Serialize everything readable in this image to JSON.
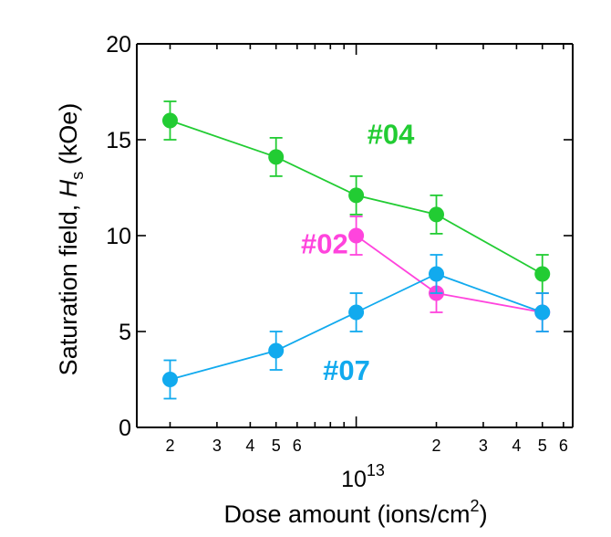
{
  "chart_data": {
    "type": "scatter",
    "x_scale": "log",
    "xlim": [
      1500000000000.0,
      65000000000000.0
    ],
    "ylim": [
      0,
      20
    ],
    "grid": false,
    "legend": "none",
    "xlabel": "Dose amount (ions/cm",
    "xlabel_sup": "2",
    "xlabel_close": ")",
    "ylabel_main": "Saturation field, ",
    "ylabel_var": "H",
    "ylabel_sub": "s",
    "ylabel_unit": " (kOe)",
    "x_exponent_base": "10",
    "x_exponent_power": "13",
    "x_tick_labels": [
      {
        "value": 2000000000000.0,
        "label": "2"
      },
      {
        "value": 3000000000000.0,
        "label": "3"
      },
      {
        "value": 4000000000000.0,
        "label": "4"
      },
      {
        "value": 5000000000000.0,
        "label": "5"
      },
      {
        "value": 6000000000000.0,
        "label": "6"
      },
      {
        "value": 20000000000000.0,
        "label": "2"
      },
      {
        "value": 30000000000000.0,
        "label": "3"
      },
      {
        "value": 40000000000000.0,
        "label": "4"
      },
      {
        "value": 50000000000000.0,
        "label": "5"
      },
      {
        "value": 60000000000000.0,
        "label": "6"
      }
    ],
    "y_ticks": [
      {
        "value": 0,
        "label": "0"
      },
      {
        "value": 5,
        "label": "5"
      },
      {
        "value": 10,
        "label": "10"
      },
      {
        "value": 15,
        "label": "15"
      },
      {
        "value": 20,
        "label": "20"
      }
    ],
    "series": [
      {
        "name": "#04",
        "color": "#22cc33",
        "label_at": {
          "x": 11000000000000.0,
          "y": 15.3
        },
        "points": [
          {
            "x": 2000000000000.0,
            "y": 16,
            "err": 1
          },
          {
            "x": 5000000000000.0,
            "y": 14.1,
            "err": 1
          },
          {
            "x": 10000000000000.0,
            "y": 12.1,
            "err": 1
          },
          {
            "x": 20000000000000.0,
            "y": 11.1,
            "err": 1
          },
          {
            "x": 50000000000000.0,
            "y": 8,
            "err": 1
          }
        ]
      },
      {
        "name": "#02",
        "color": "#ff44dd",
        "label_at": {
          "x": 6200000000000.0,
          "y": 9.6
        },
        "points": [
          {
            "x": 10000000000000.0,
            "y": 10,
            "err": 1
          },
          {
            "x": 20000000000000.0,
            "y": 7,
            "err": 1
          },
          {
            "x": 50000000000000.0,
            "y": 6,
            "err": 1
          }
        ]
      },
      {
        "name": "#07",
        "color": "#11aaee",
        "label_at": {
          "x": 7500000000000.0,
          "y": 3.0
        },
        "points": [
          {
            "x": 2000000000000.0,
            "y": 2.5,
            "err": 1
          },
          {
            "x": 5000000000000.0,
            "y": 4,
            "err": 1
          },
          {
            "x": 10000000000000.0,
            "y": 6,
            "err": 1
          },
          {
            "x": 20000000000000.0,
            "y": 8,
            "err": 1
          },
          {
            "x": 50000000000000.0,
            "y": 6,
            "err": 1
          }
        ]
      }
    ]
  }
}
